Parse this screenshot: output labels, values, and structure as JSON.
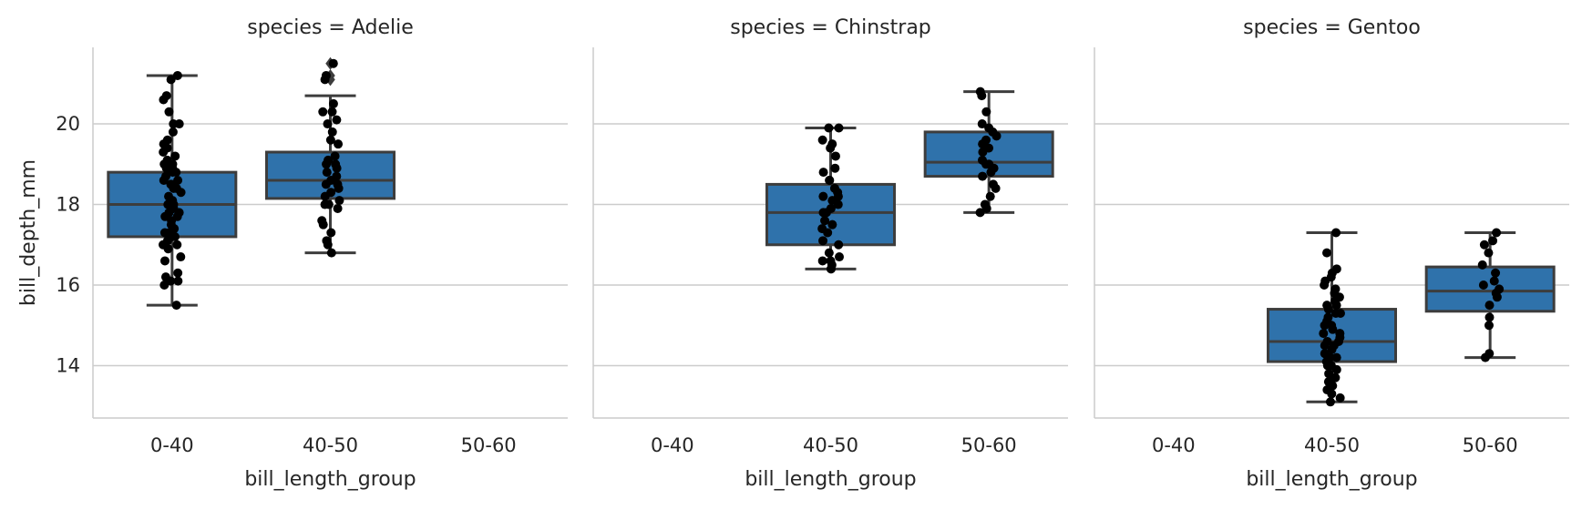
{
  "chart_data": [
    {
      "type": "box",
      "title": "species = Adelie",
      "xlabel": "bill_length_group",
      "ylabel": "bill_depth_mm",
      "categories": [
        "0-40",
        "40-50",
        "50-60"
      ],
      "yticks": [
        14,
        16,
        18,
        20
      ],
      "ylim": [
        12.7,
        21.9
      ],
      "grid": "horizontal",
      "colors": {
        "box": "#2f72ab",
        "edge": "#3d3d3d",
        "point": "#000000"
      },
      "boxes": [
        {
          "category": "0-40",
          "min": 15.5,
          "q1": 17.2,
          "median": 18.0,
          "q3": 18.8,
          "max": 21.2,
          "outliers": []
        },
        {
          "category": "40-50",
          "min": 16.8,
          "q1": 18.15,
          "median": 18.6,
          "q3": 19.3,
          "max": 20.7,
          "outliers": [
            21.1,
            21.2,
            21.5
          ]
        }
      ],
      "points": {
        "0-40": [
          15.5,
          16.0,
          16.1,
          16.1,
          16.2,
          16.3,
          16.6,
          16.7,
          16.9,
          17.0,
          17.0,
          17.1,
          17.2,
          17.2,
          17.3,
          17.3,
          17.4,
          17.5,
          17.6,
          17.7,
          17.7,
          17.8,
          17.8,
          17.9,
          17.9,
          18.0,
          18.0,
          18.1,
          18.1,
          18.2,
          18.3,
          18.4,
          18.4,
          18.5,
          18.5,
          18.6,
          18.6,
          18.7,
          18.8,
          18.8,
          18.9,
          18.9,
          19.0,
          19.0,
          19.1,
          19.2,
          19.3,
          19.4,
          19.5,
          19.6,
          19.8,
          20.0,
          20.0,
          20.3,
          20.6,
          20.7,
          21.1,
          21.2
        ],
        "40-50": [
          16.8,
          17.0,
          17.1,
          17.3,
          17.5,
          17.6,
          17.9,
          18.0,
          18.0,
          18.1,
          18.2,
          18.3,
          18.4,
          18.5,
          18.5,
          18.6,
          18.7,
          18.8,
          18.9,
          19.0,
          19.0,
          19.1,
          19.2,
          19.5,
          19.6,
          19.8,
          20.0,
          20.1,
          20.3,
          20.3,
          20.5,
          21.1,
          21.2,
          21.5
        ]
      }
    },
    {
      "type": "box",
      "title": "species = Chinstrap",
      "xlabel": "bill_length_group",
      "ylabel": "",
      "categories": [
        "0-40",
        "40-50",
        "50-60"
      ],
      "yticks": [
        14,
        16,
        18,
        20
      ],
      "ylim": [
        12.7,
        21.9
      ],
      "grid": "horizontal",
      "colors": {
        "box": "#2f72ab",
        "edge": "#3d3d3d",
        "point": "#000000"
      },
      "boxes": [
        {
          "category": "40-50",
          "min": 16.4,
          "q1": 17.0,
          "median": 17.8,
          "q3": 18.5,
          "max": 19.9,
          "outliers": []
        },
        {
          "category": "50-60",
          "min": 17.8,
          "q1": 18.7,
          "median": 19.05,
          "q3": 19.8,
          "max": 20.8,
          "outliers": []
        }
      ],
      "points": {
        "40-50": [
          16.4,
          16.5,
          16.6,
          16.6,
          16.7,
          16.8,
          17.0,
          17.1,
          17.3,
          17.4,
          17.5,
          17.6,
          17.8,
          17.8,
          17.9,
          18.0,
          18.1,
          18.2,
          18.2,
          18.3,
          18.4,
          18.6,
          18.6,
          18.8,
          18.9,
          19.2,
          19.4,
          19.5,
          19.6,
          19.9,
          19.9
        ],
        "50-60": [
          17.8,
          17.9,
          18.0,
          18.2,
          18.4,
          18.5,
          18.7,
          18.8,
          18.9,
          19.0,
          19.0,
          19.1,
          19.3,
          19.4,
          19.5,
          19.6,
          19.7,
          19.8,
          19.9,
          20.0,
          20.3,
          20.7,
          20.8
        ]
      }
    },
    {
      "type": "box",
      "title": "species = Gentoo",
      "xlabel": "bill_length_group",
      "ylabel": "",
      "categories": [
        "0-40",
        "40-50",
        "50-60"
      ],
      "yticks": [
        14,
        16,
        18,
        20
      ],
      "ylim": [
        12.7,
        21.9
      ],
      "grid": "horizontal",
      "colors": {
        "box": "#2f72ab",
        "edge": "#3d3d3d",
        "point": "#000000"
      },
      "boxes": [
        {
          "category": "40-50",
          "min": 13.1,
          "q1": 14.1,
          "median": 14.6,
          "q3": 15.4,
          "max": 17.3,
          "outliers": []
        },
        {
          "category": "50-60",
          "min": 14.2,
          "q1": 15.35,
          "median": 15.85,
          "q3": 16.45,
          "max": 17.3,
          "outliers": []
        }
      ],
      "points": {
        "40-50": [
          13.1,
          13.2,
          13.3,
          13.4,
          13.5,
          13.6,
          13.7,
          13.7,
          13.8,
          13.9,
          14.0,
          14.0,
          14.1,
          14.2,
          14.2,
          14.3,
          14.4,
          14.5,
          14.5,
          14.6,
          14.6,
          14.7,
          14.8,
          14.8,
          14.9,
          15.0,
          15.0,
          15.1,
          15.1,
          15.2,
          15.3,
          15.3,
          15.4,
          15.5,
          15.5,
          15.6,
          15.7,
          15.8,
          15.9,
          16.0,
          16.1,
          16.2,
          16.3,
          16.4,
          16.8,
          17.3
        ],
        "50-60": [
          14.2,
          14.3,
          15.0,
          15.2,
          15.5,
          15.7,
          15.8,
          15.9,
          16.0,
          16.1,
          16.3,
          16.5,
          16.8,
          17.0,
          17.1,
          17.3
        ]
      }
    }
  ]
}
